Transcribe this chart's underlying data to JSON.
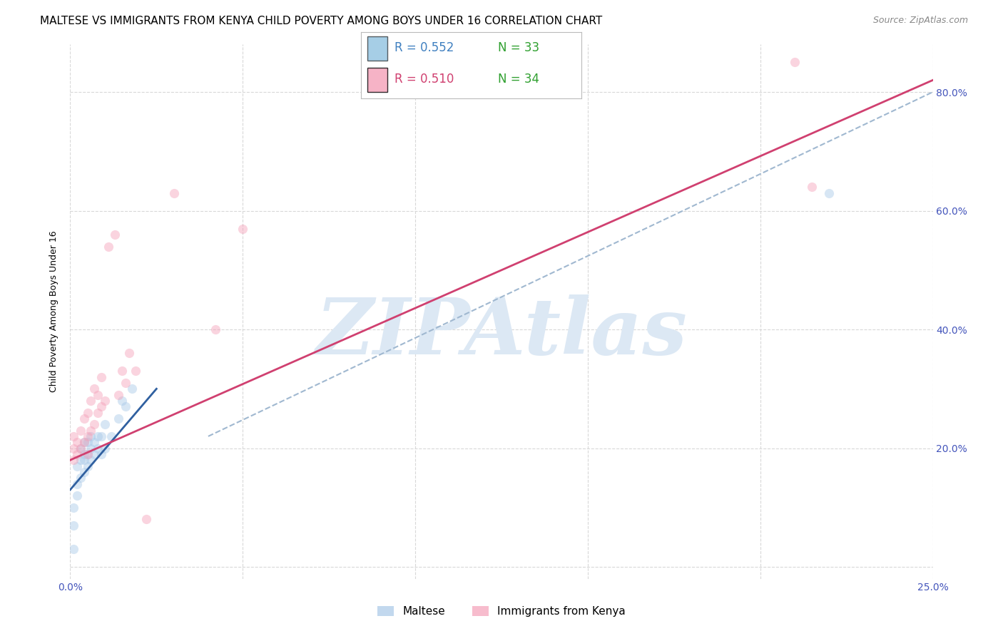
{
  "title": "MALTESE VS IMMIGRANTS FROM KENYA CHILD POVERTY AMONG BOYS UNDER 16 CORRELATION CHART",
  "source": "Source: ZipAtlas.com",
  "ylabel": "Child Poverty Among Boys Under 16",
  "legend_label_blue": "Maltese",
  "legend_label_pink": "Immigrants from Kenya",
  "legend_r_blue": "R = 0.552",
  "legend_n_blue": "N = 33",
  "legend_r_pink": "R = 0.510",
  "legend_n_pink": "N = 34",
  "xlim": [
    0.0,
    0.25
  ],
  "ylim": [
    -0.02,
    0.88
  ],
  "xticks": [
    0.0,
    0.05,
    0.1,
    0.15,
    0.2,
    0.25
  ],
  "xticklabels": [
    "0.0%",
    "",
    "",
    "",
    "",
    "25.0%"
  ],
  "yticks": [
    0.0,
    0.2,
    0.4,
    0.6,
    0.8
  ],
  "yticklabels": [
    "",
    "20.0%",
    "40.0%",
    "60.0%",
    "80.0%"
  ],
  "blue_scatter_color": "#a8c8e8",
  "pink_scatter_color": "#f4a0b8",
  "blue_line_color": "#3060a0",
  "pink_line_color": "#d04070",
  "dashed_line_color": "#a0b8d0",
  "grid_color": "#d8d8d8",
  "watermark_color": "#dce8f4",
  "watermark_text": "ZIPAtlas",
  "blue_color_legend": "#6baed6",
  "pink_color_legend": "#f4a0b8",
  "blue_r_color": "#4080c0",
  "pink_r_color": "#d04070",
  "n_color": "#30a030",
  "blue_scatter_x": [
    0.001,
    0.001,
    0.001,
    0.002,
    0.002,
    0.002,
    0.003,
    0.003,
    0.003,
    0.004,
    0.004,
    0.004,
    0.004,
    0.005,
    0.005,
    0.005,
    0.006,
    0.006,
    0.006,
    0.007,
    0.007,
    0.008,
    0.008,
    0.009,
    0.009,
    0.01,
    0.01,
    0.012,
    0.014,
    0.015,
    0.016,
    0.018,
    0.22
  ],
  "blue_scatter_y": [
    0.03,
    0.07,
    0.1,
    0.12,
    0.14,
    0.17,
    0.15,
    0.18,
    0.2,
    0.16,
    0.18,
    0.19,
    0.21,
    0.17,
    0.19,
    0.21,
    0.18,
    0.2,
    0.22,
    0.19,
    0.21,
    0.2,
    0.22,
    0.19,
    0.22,
    0.2,
    0.24,
    0.22,
    0.25,
    0.28,
    0.27,
    0.3,
    0.63
  ],
  "pink_scatter_x": [
    0.001,
    0.001,
    0.001,
    0.002,
    0.002,
    0.003,
    0.003,
    0.004,
    0.004,
    0.005,
    0.005,
    0.005,
    0.006,
    0.006,
    0.007,
    0.007,
    0.008,
    0.008,
    0.009,
    0.009,
    0.01,
    0.011,
    0.013,
    0.014,
    0.015,
    0.016,
    0.017,
    0.019,
    0.022,
    0.03,
    0.042,
    0.05,
    0.21,
    0.215
  ],
  "pink_scatter_y": [
    0.18,
    0.2,
    0.22,
    0.19,
    0.21,
    0.2,
    0.23,
    0.21,
    0.25,
    0.19,
    0.22,
    0.26,
    0.23,
    0.28,
    0.24,
    0.3,
    0.26,
    0.29,
    0.27,
    0.32,
    0.28,
    0.54,
    0.56,
    0.29,
    0.33,
    0.31,
    0.36,
    0.33,
    0.08,
    0.63,
    0.4,
    0.57,
    0.85,
    0.64
  ],
  "blue_line_x": [
    0.0,
    0.025
  ],
  "blue_line_y": [
    0.13,
    0.3
  ],
  "pink_line_x": [
    0.0,
    0.25
  ],
  "pink_line_y": [
    0.18,
    0.82
  ],
  "dashed_line_x": [
    0.04,
    0.25
  ],
  "dashed_line_y": [
    0.22,
    0.8
  ],
  "marker_size": 90,
  "marker_alpha": 0.45,
  "title_fontsize": 11,
  "source_fontsize": 9,
  "axis_label_fontsize": 9,
  "tick_fontsize": 10,
  "legend_fontsize": 12
}
